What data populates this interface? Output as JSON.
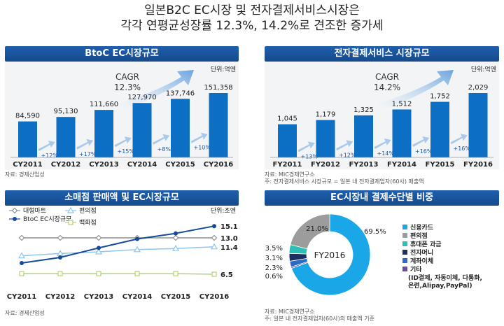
{
  "heading": {
    "line1": "일본B2C EC시장 및 전자결제서비스시장은",
    "line2": "각각 연평균성장률 12.3%, 14.2%로 견조한 증가세"
  },
  "colors": {
    "bar": "#0d6fc4",
    "header": "#1a56a2",
    "pie_blue": "#1aa7e8",
    "pie_gray": "#9c9c9c",
    "pie_teal": "#2bbfb5",
    "pie_navy": "#1b2f63",
    "pie_mid": "#2a6bc9",
    "pie_purple": "#6a4ba0"
  },
  "chart_data": [
    {
      "type": "bar",
      "title": "BtoC EC시장규모",
      "unit": "단위:억엔",
      "categories": [
        "CY2011",
        "CY2012",
        "CY2013",
        "CY2014",
        "CY2015",
        "CY2016"
      ],
      "values": [
        84590,
        95130,
        111660,
        127970,
        137746,
        151358
      ],
      "value_labels": [
        "84,590",
        "95,130",
        "111,660",
        "127,970",
        "137,746",
        "151,358"
      ],
      "growth_labels": [
        "+12%",
        "+17%",
        "+15%",
        "+8%",
        "+10%"
      ],
      "cagr_label": "CAGR",
      "cagr_value": "12.3%",
      "source": "자료: 경제산업성"
    },
    {
      "type": "bar",
      "title": "전자결제서비스 시장규모",
      "unit": "단위:억엔",
      "categories": [
        "FY2011",
        "FY2012",
        "FY2013",
        "FY2014",
        "FY2015",
        "FY2016"
      ],
      "values": [
        1045,
        1179,
        1325,
        1512,
        1752,
        2029
      ],
      "value_labels": [
        "1,045",
        "1,179",
        "1,325",
        "1,512",
        "1,752",
        "2,029"
      ],
      "growth_labels": [
        "+13%",
        "+12%",
        "+14%",
        "+16%",
        "+16%"
      ],
      "cagr_label": "CAGR",
      "cagr_value": "14.2%",
      "source": "자료: MIC경제연구소",
      "note": "주: 전자결제서비스 시장규모 = 일본 내 전자결제업자(60사) 매출액"
    },
    {
      "type": "line",
      "title": "소매점 판매액 및 EC시장규모",
      "unit": "단위:조엔",
      "categories": [
        "CY2011",
        "CY2012",
        "CY2013",
        "CY2014",
        "CY2015",
        "CY2016"
      ],
      "series": [
        {
          "name": "대형마트",
          "values": [
            13.0,
            13.0,
            13.0,
            13.0,
            13.0,
            13.0
          ],
          "end_label": "13.0",
          "color": "#8f8f8f",
          "marker": "diamond"
        },
        {
          "name": "편의점",
          "values": [
            9.8,
            10.2,
            10.5,
            10.9,
            11.1,
            11.4
          ],
          "end_label": "11.4",
          "color": "#8fc6ee",
          "marker": "triangle"
        },
        {
          "name": "BtoC EC시장규모",
          "values": [
            8.5,
            9.5,
            11.2,
            12.8,
            13.8,
            15.1
          ],
          "end_label": "15.1",
          "color": "#154c9a",
          "marker": "circle"
        },
        {
          "name": "백화점",
          "values": [
            6.6,
            6.6,
            6.6,
            6.6,
            6.6,
            6.5
          ],
          "end_label": "6.5",
          "color": "#b6d07c",
          "marker": "square"
        }
      ],
      "ylim": [
        5,
        16
      ],
      "source": "자료: 경제산업성"
    },
    {
      "type": "pie",
      "title": "EC시장내 결제수단별 비중",
      "center_label": "FY2016",
      "slices": [
        {
          "name": "신용카드",
          "value": 69.5,
          "label": "69.5%",
          "color": "#1aa7e8"
        },
        {
          "name": "기타 (ID결제, 자동이체, 다통화, 은련, Alipay, PayPal)",
          "value": 0.6,
          "label": "0.6%",
          "color": "#6a4ba0"
        },
        {
          "name": "계좌이체",
          "value": 2.3,
          "label": "2.3%",
          "color": "#2a6bc9"
        },
        {
          "name": "전자머니",
          "value": 3.1,
          "label": "3.1%",
          "color": "#1b2f63"
        },
        {
          "name": "휴대폰 과금",
          "value": 3.5,
          "label": "3.5%",
          "color": "#2bbfb5"
        },
        {
          "name": "편의점",
          "value": 21.0,
          "label": "21.0%",
          "color": "#9c9c9c"
        }
      ],
      "legend": [
        {
          "text": "신용카드",
          "color": "#1aa7e8"
        },
        {
          "text": "편의점",
          "color": "#9c9c9c"
        },
        {
          "text": "휴대폰 과금",
          "color": "#2bbfb5"
        },
        {
          "text": "전자머니",
          "color": "#1b2f63"
        },
        {
          "text": "계좌이체",
          "color": "#2a6bc9"
        },
        {
          "text": "기타",
          "color": "#6a4ba0",
          "extra": [
            "(ID결제, 자동이체, 다통화,",
            "은련,Alipay,PayPal)"
          ]
        }
      ],
      "source": "자료: MIC경제연구소",
      "note": "주: 일본 내 전자결제업자(60사)의 매출액 기준"
    }
  ]
}
